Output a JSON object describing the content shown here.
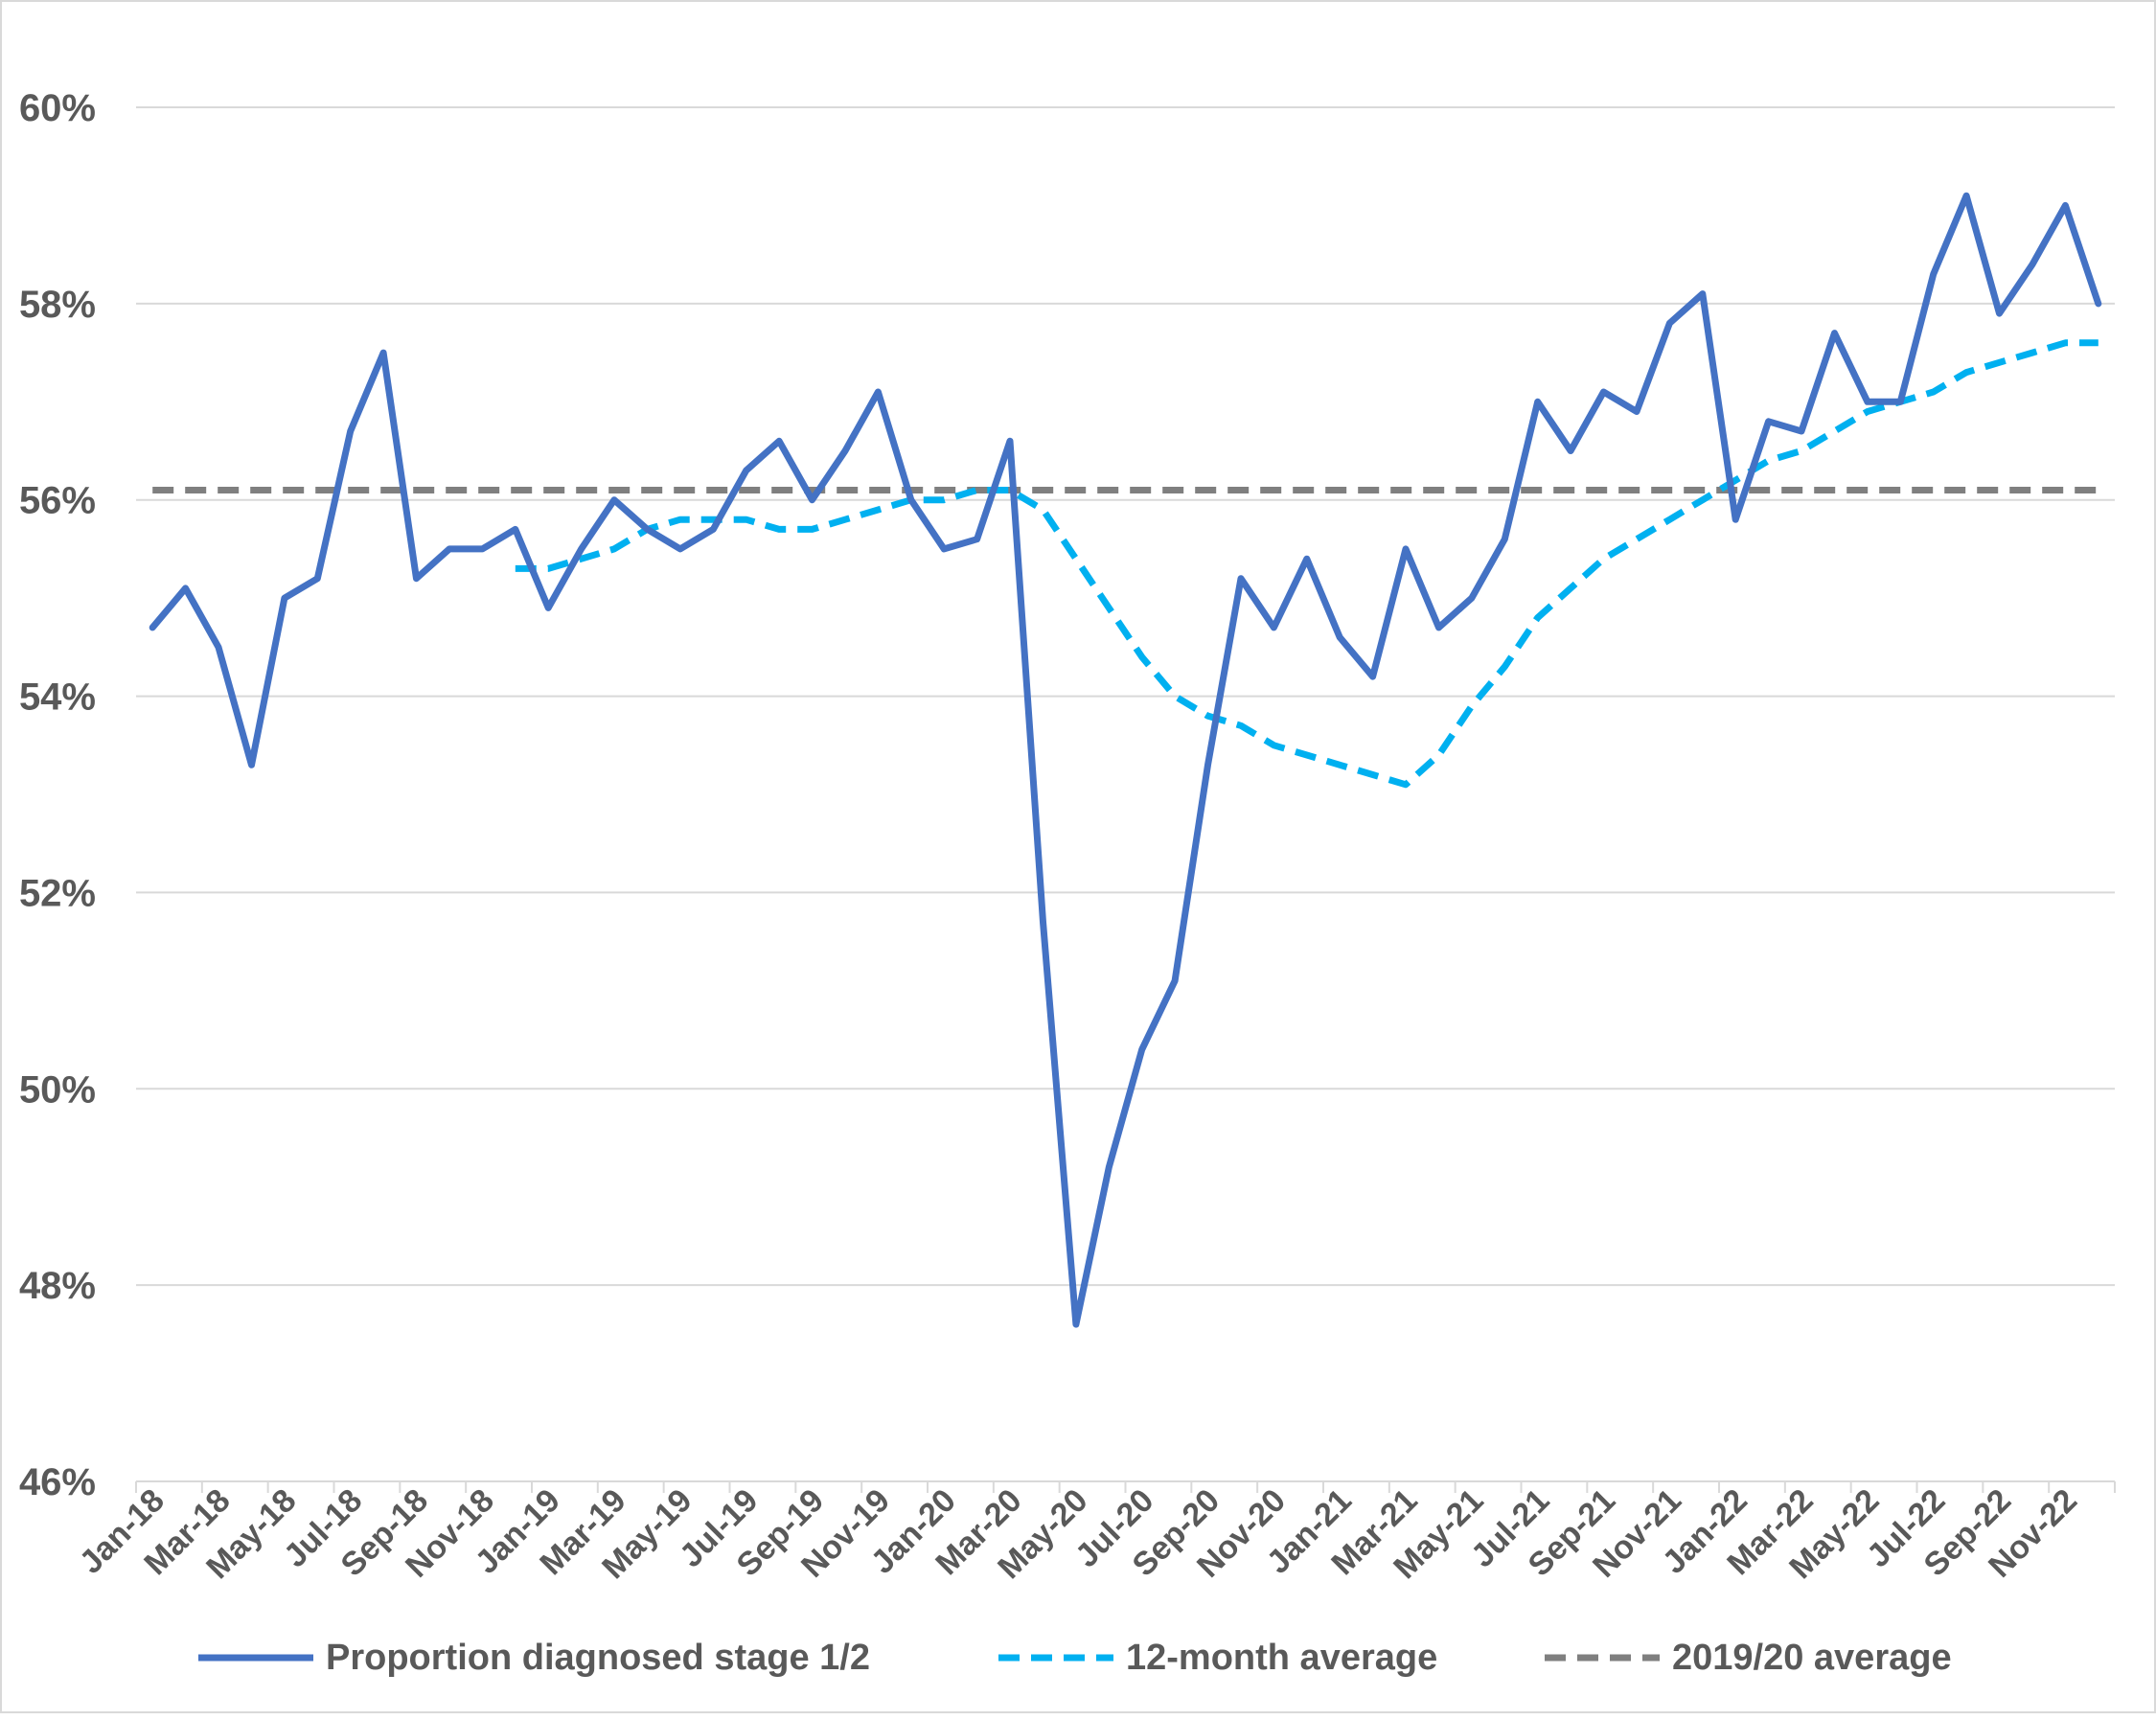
{
  "chart_data": {
    "type": "line",
    "title": "",
    "xlabel": "",
    "ylabel": "",
    "ylim": [
      46,
      60
    ],
    "y_ticks": [
      "46%",
      "48%",
      "50%",
      "52%",
      "54%",
      "56%",
      "58%",
      "60%"
    ],
    "grid": true,
    "legend_position": "bottom",
    "x": [
      "Jan-18",
      "Feb-18",
      "Mar-18",
      "Apr-18",
      "May-18",
      "Jun-18",
      "Jul-18",
      "Aug-18",
      "Sep-18",
      "Oct-18",
      "Nov-18",
      "Dec-18",
      "Jan-19",
      "Feb-19",
      "Mar-19",
      "Apr-19",
      "May-19",
      "Jun-19",
      "Jul-19",
      "Aug-19",
      "Sep-19",
      "Oct-19",
      "Nov-19",
      "Dec-19",
      "Jan-20",
      "Feb-20",
      "Mar-20",
      "Apr-20",
      "May-20",
      "Jun-20",
      "Jul-20",
      "Aug-20",
      "Sep-20",
      "Oct-20",
      "Nov-20",
      "Dec-20",
      "Jan-21",
      "Feb-21",
      "Mar-21",
      "Apr-21",
      "May-21",
      "Jun-21",
      "Jul-21",
      "Aug-21",
      "Sep-21",
      "Oct-21",
      "Nov-21",
      "Dec-21",
      "Jan-22",
      "Feb-22",
      "Mar-22",
      "Apr-22",
      "May-22",
      "Jun-22",
      "Jul-22",
      "Aug-22",
      "Sep-22",
      "Oct-22",
      "Nov-22",
      "Dec-22"
    ],
    "x_tick_labels": [
      "Jan-18",
      "Mar-18",
      "May-18",
      "Jul-18",
      "Sep-18",
      "Nov-18",
      "Jan-19",
      "Mar-19",
      "May-19",
      "Jul-19",
      "Sep-19",
      "Nov-19",
      "Jan-20",
      "Mar-20",
      "May-20",
      "Jul-20",
      "Sep-20",
      "Nov-20",
      "Jan-21",
      "Mar-21",
      "May-21",
      "Jul-21",
      "Sep-21",
      "Nov-21",
      "Jan-22",
      "Mar-22",
      "May-22",
      "Jul-22",
      "Sep-22",
      "Nov-22"
    ],
    "series": [
      {
        "name": "Proportion diagnosed stage 1/2",
        "color": "#4472c4",
        "style": "solid",
        "values": [
          54.7,
          55.1,
          54.5,
          53.3,
          55.0,
          55.2,
          56.7,
          57.5,
          55.2,
          55.5,
          55.5,
          55.7,
          54.9,
          55.5,
          56.0,
          55.7,
          55.5,
          55.7,
          56.3,
          56.6,
          56.0,
          56.5,
          57.1,
          56.0,
          55.5,
          55.6,
          56.6,
          51.7,
          47.6,
          49.2,
          50.4,
          51.1,
          53.3,
          55.2,
          54.7,
          55.4,
          54.6,
          54.2,
          55.5,
          54.7,
          55.0,
          55.6,
          57.0,
          56.5,
          57.1,
          56.9,
          57.8,
          58.1,
          55.8,
          56.8,
          56.7,
          57.7,
          57.0,
          57.0,
          58.3,
          59.1,
          57.9,
          58.4,
          59.0,
          58.0
        ]
      },
      {
        "name": "12-month average",
        "color": "#00b0f0",
        "style": "dashed",
        "values": [
          null,
          null,
          null,
          null,
          null,
          null,
          null,
          null,
          null,
          null,
          null,
          55.3,
          55.3,
          55.4,
          55.5,
          55.7,
          55.8,
          55.8,
          55.8,
          55.7,
          55.7,
          55.8,
          55.9,
          56.0,
          56.0,
          56.1,
          56.1,
          55.9,
          55.4,
          54.9,
          54.4,
          54.0,
          53.8,
          53.7,
          53.5,
          53.4,
          53.3,
          53.2,
          53.1,
          53.4,
          53.9,
          54.3,
          54.8,
          55.1,
          55.4,
          55.6,
          55.8,
          56.0,
          56.2,
          56.4,
          56.5,
          56.7,
          56.9,
          57.0,
          57.1,
          57.3,
          57.4,
          57.5,
          57.6,
          57.6
        ]
      },
      {
        "name": "2019/20 average",
        "color": "#7f7f7f",
        "style": "dashed",
        "values": [
          56.1,
          56.1,
          56.1,
          56.1,
          56.1,
          56.1,
          56.1,
          56.1,
          56.1,
          56.1,
          56.1,
          56.1,
          56.1,
          56.1,
          56.1,
          56.1,
          56.1,
          56.1,
          56.1,
          56.1,
          56.1,
          56.1,
          56.1,
          56.1,
          56.1,
          56.1,
          56.1,
          56.1,
          56.1,
          56.1,
          56.1,
          56.1,
          56.1,
          56.1,
          56.1,
          56.1,
          56.1,
          56.1,
          56.1,
          56.1,
          56.1,
          56.1,
          56.1,
          56.1,
          56.1,
          56.1,
          56.1,
          56.1,
          56.1,
          56.1,
          56.1,
          56.1,
          56.1,
          56.1,
          56.1,
          56.1,
          56.1,
          56.1,
          56.1,
          56.1
        ]
      }
    ]
  }
}
